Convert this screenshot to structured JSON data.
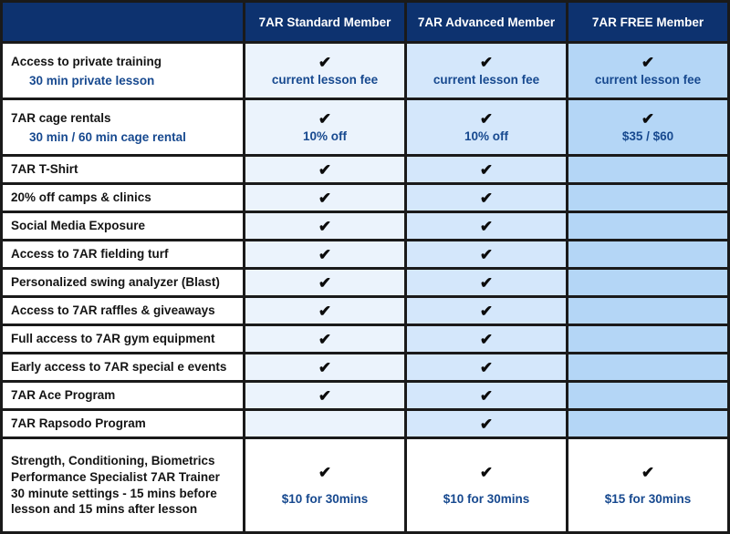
{
  "icons": {
    "check_icon": "✔"
  },
  "colors": {
    "border": "#1a1a1a",
    "header_bg": "#0d326f",
    "header_text": "#ffffff",
    "label_bg": "#ffffff",
    "label_text": "#141414",
    "accent_text": "#17498f",
    "column_standard_bg": "#ebf3fc",
    "column_advanced_bg": "#d4e7fb",
    "column_free_bg": "#b4d6f6",
    "check_color": "#0b0b0b",
    "bottom_row_bg": "#ffffff"
  },
  "chart_data": {
    "type": "table",
    "columns": [
      "",
      "7AR Standard Member",
      "7AR Advanced Member",
      "7AR FREE Member"
    ],
    "column_keys": [
      "standard",
      "advanced",
      "free"
    ],
    "rows": [
      {
        "label": "Access to private training",
        "sublabel": "30 min private lesson",
        "cells": [
          {
            "check": true,
            "note": "current lesson fee"
          },
          {
            "check": true,
            "note": "current lesson fee"
          },
          {
            "check": true,
            "note": "current lesson fee"
          }
        ]
      },
      {
        "label": "7AR cage rentals",
        "sublabel": "30 min / 60 min cage rental",
        "cells": [
          {
            "check": true,
            "note": "10% off"
          },
          {
            "check": true,
            "note": "10% off"
          },
          {
            "check": true,
            "note": "$35 / $60"
          }
        ]
      },
      {
        "label": "7AR T-Shirt",
        "cells": [
          {
            "check": true
          },
          {
            "check": true
          },
          {}
        ]
      },
      {
        "label": "20% off camps & clinics",
        "cells": [
          {
            "check": true
          },
          {
            "check": true
          },
          {}
        ]
      },
      {
        "label": "Social Media Exposure",
        "cells": [
          {
            "check": true
          },
          {
            "check": true
          },
          {}
        ]
      },
      {
        "label": "Access to 7AR fielding turf",
        "cells": [
          {
            "check": true
          },
          {
            "check": true
          },
          {}
        ]
      },
      {
        "label": "Personalized swing analyzer (Blast)",
        "cells": [
          {
            "check": true
          },
          {
            "check": true
          },
          {}
        ]
      },
      {
        "label": "Access to 7AR raffles & giveaways",
        "cells": [
          {
            "check": true
          },
          {
            "check": true
          },
          {}
        ]
      },
      {
        "label": "Full access to 7AR gym equipment",
        "cells": [
          {
            "check": true
          },
          {
            "check": true
          },
          {}
        ]
      },
      {
        "label": "Early access to 7AR special e events",
        "cells": [
          {
            "check": true
          },
          {
            "check": true
          },
          {}
        ]
      },
      {
        "label": "7AR Ace Program",
        "cells": [
          {
            "check": true
          },
          {
            "check": true
          },
          {}
        ]
      },
      {
        "label": "7AR Rapsodo Program",
        "cells": [
          {},
          {
            "check": true
          },
          {}
        ]
      },
      {
        "label": "Strength, Conditioning, Biometrics Performance Specialist 7AR Trainer 30 minute settings - 15 mins before lesson and 15 mins after lesson",
        "plain_bg": true,
        "cells": [
          {
            "check": true,
            "note": "$10 for 30mins"
          },
          {
            "check": true,
            "note": "$10 for 30mins"
          },
          {
            "check": true,
            "note": "$15 for 30mins"
          }
        ]
      }
    ]
  }
}
